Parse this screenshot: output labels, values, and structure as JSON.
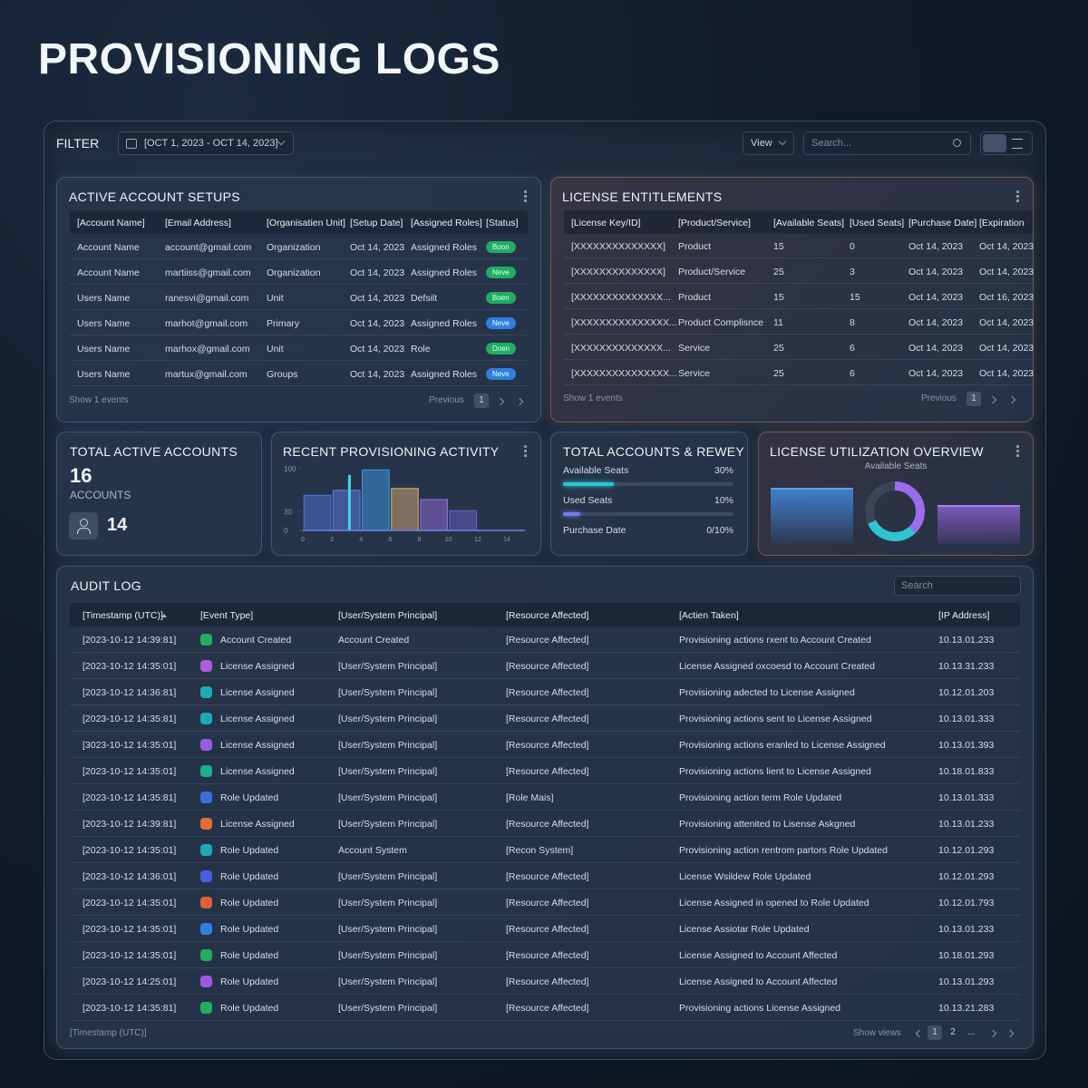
{
  "header": {
    "title": "PROVISIONING LOGS"
  },
  "filter": {
    "label": "FILTER",
    "date_range": "[OCT 1, 2023 - OCT 14, 2023]",
    "view": "View",
    "search": "Search..."
  },
  "active_accounts": {
    "title": "ACTIVE ACCOUNT SETUPS",
    "columns": [
      "[Account Name]",
      "[Email Address]",
      "[Organisatien Unit]",
      "[Setup Date]",
      "[Assigned Roles]",
      "[Status]"
    ],
    "rows": [
      [
        "Account Name",
        "account@gmail.com",
        "Organization",
        "Oct 14, 2023",
        "Assigned Roles",
        "Boon"
      ],
      [
        "Account Name",
        "martiiss@gmail.com",
        "Organization",
        "Oct 14, 2023",
        "Assigned Roles",
        "Neve"
      ],
      [
        "Users Name",
        "ranesvi@gmail.com",
        "Unit",
        "Oct 14, 2023",
        "Defsilt",
        "Boen"
      ],
      [
        "Users Name",
        "marhot@gmail.com",
        "Primary",
        "Oct 14, 2023",
        "Assigned Roles",
        "Neve"
      ],
      [
        "Users Name",
        "marhox@gmail.com",
        "Unit",
        "Oct 14, 2023",
        "Role",
        "Doen"
      ],
      [
        "Users Name",
        "martux@gmail.com",
        "Groups",
        "Oct 14, 2023",
        "Assigned Roles",
        "Neve"
      ]
    ],
    "status_colors": [
      "#1fae62",
      "#1fae62",
      "#1fae62",
      "#2f7fe0",
      "#1fae62",
      "#2f7fe0"
    ],
    "footer": "Show 1 events",
    "previous": "Previous",
    "page": "1"
  },
  "licenses": {
    "title": "LICENSE ENTITLEMENTS",
    "columns": [
      "[License Key/ID]",
      "[Product/Service]",
      "[Available Seats]",
      "[Used Seats]",
      "[Purchase Date]",
      "[Expiration"
    ],
    "rows": [
      [
        "[XXXXXXXXXXXXXX]",
        "Product",
        15,
        0,
        "Oct 14, 2023",
        "Oct 14, 2023"
      ],
      [
        "[XXXXXXXXXXXXXX]",
        "Product/Service",
        25,
        3,
        "Oct 14, 2023",
        "Oct 14, 2023"
      ],
      [
        "[XXXXXXXXXXXXXX...",
        "Product",
        15,
        15,
        "Oct 14, 2023",
        "Oct 16, 2023"
      ],
      [
        "[XXXXXXXXXXXXXXX...",
        "Product Complisnce",
        11,
        8,
        "Oct 14, 2023",
        "Oct 14, 2023"
      ],
      [
        "[XXXXXXXXXXXXXX...",
        "Service",
        25,
        6,
        "Oct 14, 2023",
        "Oct 14, 2023"
      ],
      [
        "[XXXXXXXXXXXXXXX...",
        "Service",
        25,
        6,
        "Oct 14, 2023",
        "Oct 14, 2023"
      ]
    ],
    "footer": "Show 1 events",
    "previous": "Previous",
    "page": "1"
  },
  "total_active": {
    "title": "TOTAL ACTIVE ACCOUNTS",
    "value": 16,
    "label": "ACCOUNTS",
    "secondary": 14
  },
  "recent_activity": {
    "type": "bar",
    "title": "RECENT PROVISIONING ACTIVITY",
    "x": [
      1,
      3,
      5,
      7,
      9,
      11
    ],
    "values": [
      57,
      65,
      98,
      68,
      50,
      32
    ],
    "colors": [
      "#4a6fc9",
      "#5a78d8",
      "#3a8fd6",
      "#c9a070",
      "#8a6ad0",
      "#6a5ac0"
    ],
    "line": {
      "x": [
        3.2
      ],
      "values": [
        90
      ],
      "color": "#3fd6e6"
    },
    "xlim": [
      0,
      14
    ],
    "ylim": [
      0,
      100
    ],
    "xticks": [
      0,
      2,
      4,
      6,
      8,
      10,
      12,
      14
    ],
    "yticks": [
      0,
      30,
      100
    ]
  },
  "review": {
    "title": "TOTAL ACCOUNTS & RЕWEY",
    "range": [
      0,
      100
    ],
    "rows": [
      {
        "label": "Available Seats",
        "value": 30,
        "value_label": "30%",
        "color": "#2ec5d3"
      },
      {
        "label": "Used Seats",
        "value": 10,
        "value_label": "10%",
        "color": "#6f7fe8"
      },
      {
        "label": "Purchase Date",
        "text": "0/10%"
      }
    ]
  },
  "utilization": {
    "title": "LICENSE UTILIZATION OVERVIEW",
    "subtitle": "Available Seats",
    "donut": {
      "values": [
        38,
        30,
        32
      ],
      "colors": [
        "#9b6cf0",
        "#2ec5d3",
        "#3a4556"
      ]
    }
  },
  "audit": {
    "title": "AUDIT LOG",
    "search": "Search",
    "columns": [
      "[Timestamp (UTC)]",
      "[Event Type]",
      "[User/System Principal]",
      "[Resource Affected]",
      "[Actien Taken]",
      "[IP Address]"
    ],
    "rows": [
      [
        "[2023-10-12 14:39:81]",
        "Account Created",
        "Account Created",
        "[Resource Affected]",
        "Provisioning actions rxent to Account Created",
        "10.13.01.233"
      ],
      [
        "[2023-10-12 14:35:01]",
        "License Assigned",
        "[User/System Principal]",
        "[Resource Affected]",
        "License Assigned oxcoesd to Account Created",
        "10.13.31.233"
      ],
      [
        "[2023-10-12 14:36:81]",
        "License Assigned",
        "[User/System Principal]",
        "[Resource Affected]",
        "Provisioning adected to License Assigned",
        "10.12.01.203"
      ],
      [
        "[2023-10-12 14:35:81]",
        "License Assigned",
        "[User/System Principal]",
        "[Resource Affected]",
        "Provisioning actions sent to License Assigned",
        "10.13.01.333"
      ],
      [
        "[3023-10-12 14:35:01]",
        "License Assigned",
        "[User/System Principal]",
        "[Resource Affected]",
        "Provisioning actions eranled to License Assigned",
        "10.13.01.393"
      ],
      [
        "[2023-10-12 14:35:01]",
        "License Assigned",
        "[User/System Principal]",
        "[Resource Affected]",
        "Provisioning actions lient to License Assigned",
        "10.18.01.833"
      ],
      [
        "[2023-10-12 14:35:81]",
        "Role Updated",
        "[User/System Principal]",
        "[Role Mais]",
        "Provisioning action term Role Updated",
        "10.13.01.333"
      ],
      [
        "[2023-10-12 14:39:81]",
        "License Assigned",
        "[User/System Principal]",
        "[Resource Affected]",
        "Provisioning attenited to Lisense Askgned",
        "10.13.01.233"
      ],
      [
        "[2023-10-12 14:35:01]",
        "Role Updated",
        "Account System",
        "[Recon System]",
        "Provisioning action rentrom partors Role Updated",
        "10.12.01.293"
      ],
      [
        "[2023-10-12 14:36:01]",
        "Role Updated",
        "[User/System Principal]",
        "[Resource Affected]",
        "License Wsildew Role Updated",
        "10.12.01.293"
      ],
      [
        "[2023-10-12 14:35:01]",
        "Role Updated",
        "[User/System Principal]",
        "[Resource Affected]",
        "License Assigned in opened to Role Updated",
        "10.12.01.793"
      ],
      [
        "[2023-10-12 14:35:01]",
        "Role Updated",
        "[User/System Principal]",
        "[Resource Affected]",
        "License Assiotar Role Updated",
        "10.13.01.233"
      ],
      [
        "[2023-10-12 14:35:01]",
        "Role Updated",
        "[User/System Principal]",
        "[Resource Affected]",
        "License Assigned to Account Affected",
        "10.18.01.293"
      ],
      [
        "[2023-10-12 14:25:01]",
        "Role Updated",
        "[User/System Principal]",
        "[Resource Affected]",
        "License Assigned to Account Affected",
        "10.13.01.293"
      ],
      [
        "[2023-10-12 14:35:81]",
        "Role Updated",
        "[User/System Principal]",
        "[Resource Affected]",
        "Provisioning actions License Assigned",
        "10.13.21.283"
      ]
    ],
    "icon_colors": [
      "#1fae62",
      "#b05be0",
      "#1fa8b8",
      "#1fa8b8",
      "#9a5ae0",
      "#1fae8a",
      "#3a6fe0",
      "#e0703a",
      "#1fa8b8",
      "#4a5ee0",
      "#e0603a",
      "#2f7fe0",
      "#1fae62",
      "#9a5ae0",
      "#1fae62"
    ],
    "footer": "[Timestamp (UTC)]",
    "show": "Show views",
    "pages": [
      "1",
      "2",
      "..."
    ]
  }
}
